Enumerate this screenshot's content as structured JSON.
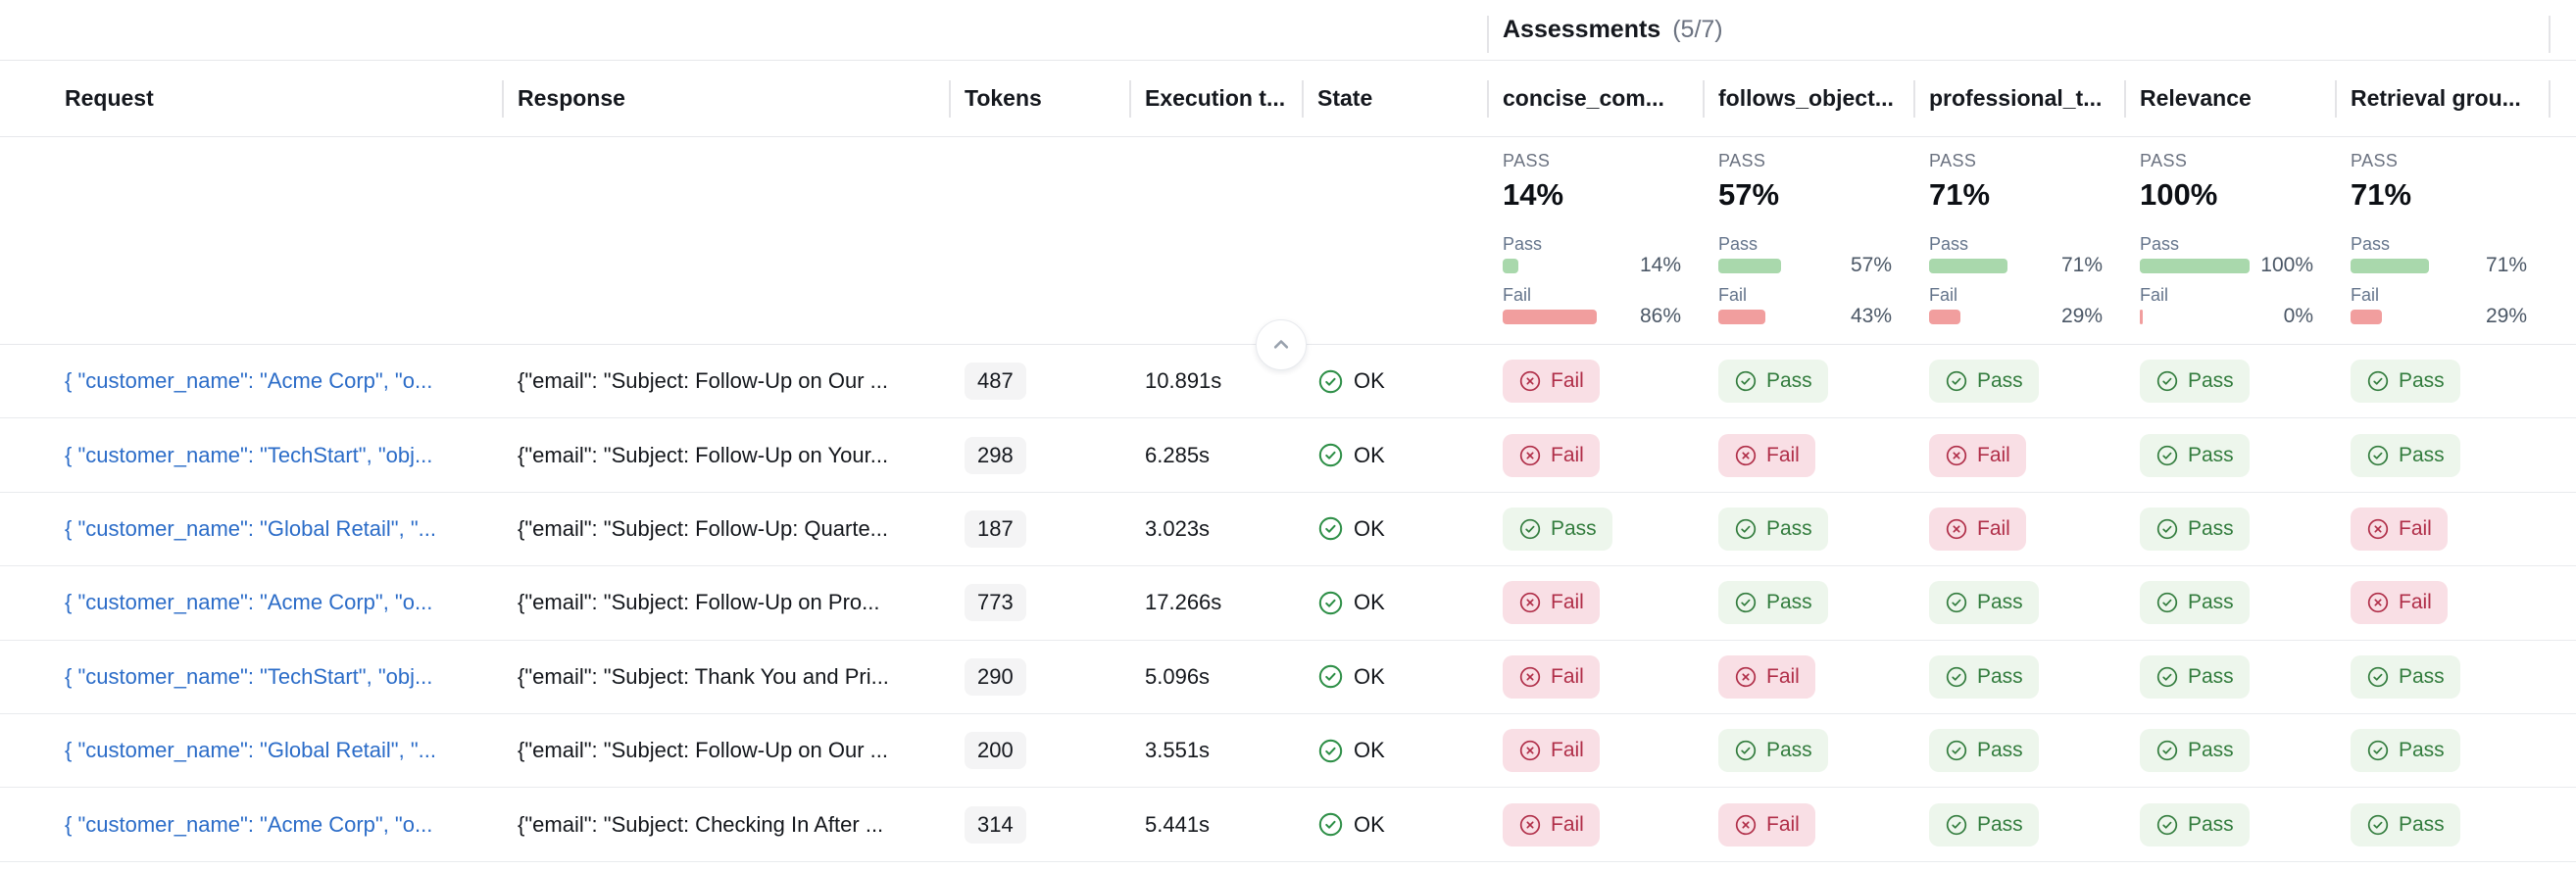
{
  "group_header": {
    "title": "Assessments",
    "count": "(5/7)"
  },
  "columns": [
    {
      "id": "request",
      "label": "Request"
    },
    {
      "id": "response",
      "label": "Response"
    },
    {
      "id": "tokens",
      "label": "Tokens"
    },
    {
      "id": "execution-time",
      "label": "Execution t..."
    },
    {
      "id": "state",
      "label": "State"
    },
    {
      "id": "concise-communication",
      "label": "concise_com..."
    },
    {
      "id": "follows-objective",
      "label": "follows_object..."
    },
    {
      "id": "professional-tone",
      "label": "professional_t..."
    },
    {
      "id": "relevance",
      "label": "Relevance"
    },
    {
      "id": "retrieval-groundedness",
      "label": "Retrieval grou..."
    }
  ],
  "summary_labels": {
    "verdict": "PASS",
    "pass": "Pass",
    "fail": "Fail"
  },
  "assessments": [
    {
      "name": "concise_com...",
      "verdict": "PASS",
      "overall_pct": "14%",
      "pass_pct": 14,
      "fail_pct": 86,
      "pass_pct_text": "14%",
      "fail_pct_text": "86%"
    },
    {
      "name": "follows_object...",
      "verdict": "PASS",
      "overall_pct": "57%",
      "pass_pct": 57,
      "fail_pct": 43,
      "pass_pct_text": "57%",
      "fail_pct_text": "43%"
    },
    {
      "name": "professional_t...",
      "verdict": "PASS",
      "overall_pct": "71%",
      "pass_pct": 71,
      "fail_pct": 29,
      "pass_pct_text": "71%",
      "fail_pct_text": "29%"
    },
    {
      "name": "Relevance",
      "verdict": "PASS",
      "overall_pct": "100%",
      "pass_pct": 100,
      "fail_pct": 0,
      "pass_pct_text": "100%",
      "fail_pct_text": "0%"
    },
    {
      "name": "Retrieval grou...",
      "verdict": "PASS",
      "overall_pct": "71%",
      "pass_pct": 71,
      "fail_pct": 29,
      "pass_pct_text": "71%",
      "fail_pct_text": "29%"
    }
  ],
  "result_labels": {
    "pass": "Pass",
    "fail": "Fail"
  },
  "rows": [
    {
      "request": "{ \"customer_name\": \"Acme Corp\", \"o...",
      "response": "{\"email\": \"Subject: Follow-Up on Our ...",
      "tokens": "487",
      "execution_time": "10.891s",
      "state": "OK",
      "results": [
        "fail",
        "pass",
        "pass",
        "pass",
        "pass"
      ]
    },
    {
      "request": "{ \"customer_name\": \"TechStart\", \"obj...",
      "response": "{\"email\": \"Subject: Follow-Up on Your...",
      "tokens": "298",
      "execution_time": "6.285s",
      "state": "OK",
      "results": [
        "fail",
        "fail",
        "fail",
        "pass",
        "pass"
      ]
    },
    {
      "request": "{ \"customer_name\": \"Global Retail\", \"...",
      "response": "{\"email\": \"Subject: Follow-Up: Quarte...",
      "tokens": "187",
      "execution_time": "3.023s",
      "state": "OK",
      "results": [
        "pass",
        "pass",
        "fail",
        "pass",
        "fail"
      ]
    },
    {
      "request": "{ \"customer_name\": \"Acme Corp\", \"o...",
      "response": "{\"email\": \"Subject: Follow-Up on Pro...",
      "tokens": "773",
      "execution_time": "17.266s",
      "state": "OK",
      "results": [
        "fail",
        "pass",
        "pass",
        "pass",
        "fail"
      ]
    },
    {
      "request": "{ \"customer_name\": \"TechStart\", \"obj...",
      "response": "{\"email\": \"Subject: Thank You and Pri...",
      "tokens": "290",
      "execution_time": "5.096s",
      "state": "OK",
      "results": [
        "fail",
        "fail",
        "pass",
        "pass",
        "pass"
      ]
    },
    {
      "request": "{ \"customer_name\": \"Global Retail\", \"...",
      "response": "{\"email\": \"Subject: Follow-Up on Our ...",
      "tokens": "200",
      "execution_time": "3.551s",
      "state": "OK",
      "results": [
        "fail",
        "pass",
        "pass",
        "pass",
        "pass"
      ]
    },
    {
      "request": "{ \"customer_name\": \"Acme Corp\", \"o...",
      "response": "{\"email\": \"Subject: Checking In After ...",
      "tokens": "314",
      "execution_time": "5.441s",
      "state": "OK",
      "results": [
        "fail",
        "fail",
        "pass",
        "pass",
        "pass"
      ]
    }
  ],
  "colors": {
    "link_blue": "#2b6cc8",
    "pass_bar": "#a9d8ac",
    "fail_bar": "#f19e9e",
    "pass_badge_bg": "#edf6ec",
    "pass_badge_text": "#327c3d",
    "fail_badge_bg": "#f9dfe5",
    "fail_badge_text": "#b02e48",
    "state_ok_green": "#2e8f47"
  }
}
